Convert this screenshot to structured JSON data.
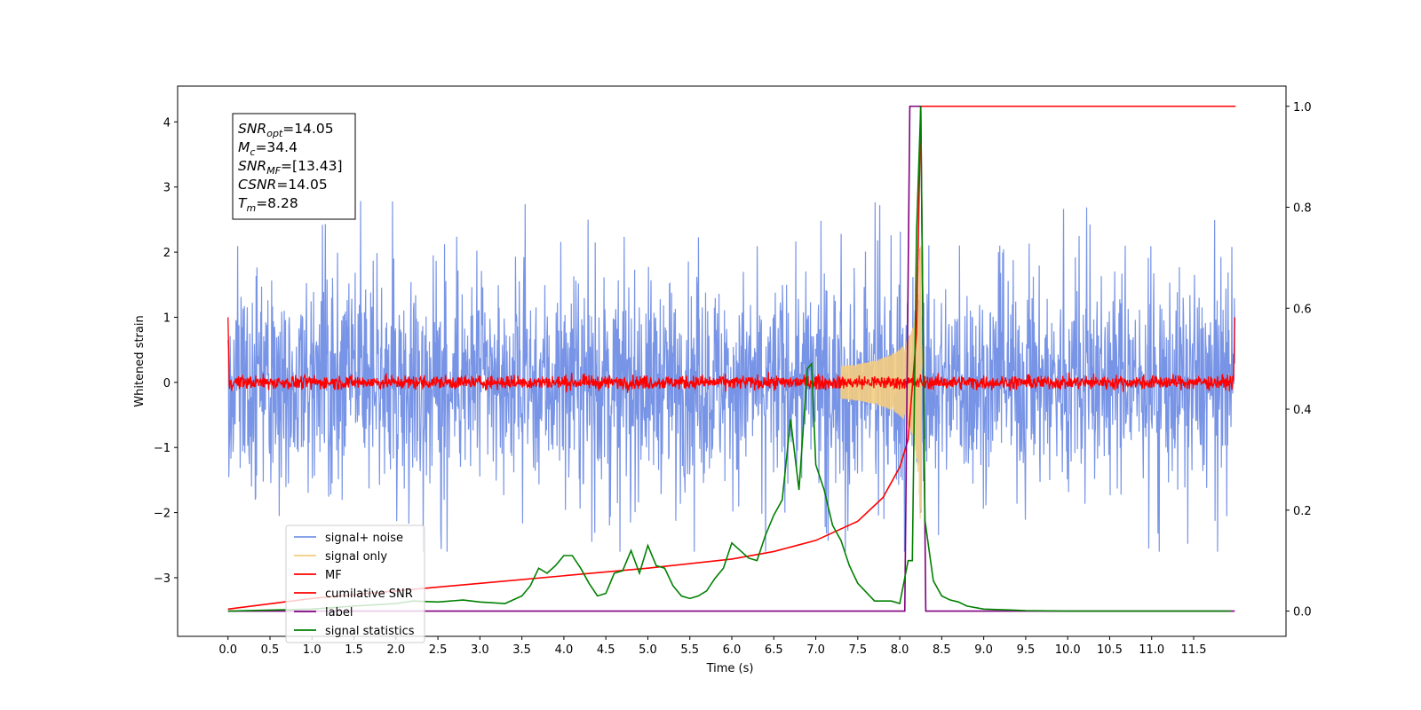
{
  "chart_data": {
    "type": "line",
    "xlabel": "Time (s)",
    "ylabel": "Whitened strain",
    "xlim": [
      -0.6,
      12.6
    ],
    "ylim": [
      -3.9,
      4.55
    ],
    "y2lim": [
      -0.05,
      1.04
    ],
    "x_ticks": [
      "0.0",
      "0.5",
      "1.0",
      "1.5",
      "2.0",
      "2.5",
      "3.0",
      "3.5",
      "4.0",
      "4.5",
      "5.0",
      "5.5",
      "6.0",
      "6.5",
      "7.0",
      "7.5",
      "8.0",
      "8.5",
      "9.0",
      "9.5",
      "10.0",
      "10.5",
      "11.0",
      "11.5"
    ],
    "y_ticks": [
      "4",
      "3",
      "2",
      "1",
      "0",
      "−1",
      "−2",
      "−3"
    ],
    "y2_ticks": [
      "1.0",
      "0.8",
      "0.6",
      "0.4",
      "0.2",
      "0.0"
    ],
    "grid": false,
    "legend_position": "lower-left",
    "colors": {
      "noise": "#7894e6",
      "signal": "#f4cc80",
      "mf": "#ff0000",
      "csnr": "#ff0000",
      "label": "#800080",
      "stats": "#008000"
    },
    "series": [
      {
        "name": "signal+ noise",
        "axis": "left",
        "x_range": [
          0.0,
          11.99
        ],
        "typical_range": [
          -1.5,
          1.5
        ],
        "extremes": [
          -2.6,
          2.85
        ]
      },
      {
        "name": "signal only",
        "axis": "left",
        "peak_time": 8.26,
        "peak_amplitude": 2.1
      },
      {
        "name": "MF",
        "axis": "left",
        "baseline": 0.0,
        "noise_amplitude": 0.12,
        "endpoint_value": 1.0
      },
      {
        "name": "cumilative SNR",
        "axis": "right",
        "x": [
          0.0,
          1.0,
          2.0,
          3.0,
          4.0,
          5.0,
          6.0,
          6.5,
          7.0,
          7.5,
          7.8,
          8.0,
          8.1,
          8.2,
          8.25,
          8.3,
          12.0
        ],
        "y": [
          0.004,
          0.025,
          0.04,
          0.055,
          0.07,
          0.085,
          0.103,
          0.118,
          0.14,
          0.178,
          0.225,
          0.285,
          0.34,
          0.55,
          1.0,
          1.0,
          1.0
        ]
      },
      {
        "name": "label",
        "axis": "right",
        "x": [
          0.0,
          8.06,
          8.12,
          8.25,
          8.31,
          11.99
        ],
        "y": [
          0.0,
          0.0,
          1.0,
          1.0,
          0.0,
          0.0
        ]
      },
      {
        "name": "signal statistics",
        "axis": "right",
        "x": [
          0.0,
          1.0,
          1.5,
          2.0,
          2.2,
          2.5,
          2.8,
          3.0,
          3.3,
          3.5,
          3.6,
          3.7,
          3.8,
          3.9,
          4.0,
          4.1,
          4.2,
          4.3,
          4.4,
          4.5,
          4.6,
          4.7,
          4.8,
          4.9,
          5.0,
          5.1,
          5.2,
          5.3,
          5.4,
          5.5,
          5.6,
          5.7,
          5.8,
          5.9,
          6.0,
          6.1,
          6.2,
          6.3,
          6.4,
          6.5,
          6.6,
          6.7,
          6.8,
          6.9,
          6.95,
          7.0,
          7.1,
          7.2,
          7.3,
          7.4,
          7.5,
          7.7,
          7.9,
          8.0,
          8.1,
          8.15,
          8.2,
          8.25,
          8.3,
          8.4,
          8.5,
          8.6,
          8.7,
          8.8,
          9.0,
          9.5,
          10.0,
          11.0,
          11.94
        ],
        "y": [
          0.0,
          0.004,
          0.01,
          0.015,
          0.02,
          0.018,
          0.022,
          0.018,
          0.015,
          0.03,
          0.05,
          0.085,
          0.075,
          0.09,
          0.11,
          0.11,
          0.085,
          0.055,
          0.03,
          0.035,
          0.075,
          0.08,
          0.12,
          0.075,
          0.13,
          0.09,
          0.085,
          0.05,
          0.03,
          0.025,
          0.03,
          0.04,
          0.065,
          0.085,
          0.135,
          0.12,
          0.105,
          0.1,
          0.15,
          0.19,
          0.22,
          0.38,
          0.24,
          0.48,
          0.49,
          0.29,
          0.24,
          0.17,
          0.14,
          0.09,
          0.055,
          0.02,
          0.02,
          0.015,
          0.1,
          0.1,
          0.75,
          1.0,
          0.18,
          0.06,
          0.03,
          0.022,
          0.018,
          0.01,
          0.004,
          0.001,
          0.0,
          0.0,
          0.0
        ]
      }
    ],
    "annotation": {
      "lines": [
        {
          "main": "SNR",
          "sub": "opt",
          "value": "=14.05"
        },
        {
          "main": "M",
          "sub": "c",
          "value": "=34.4"
        },
        {
          "main": "SNR",
          "sub": "MF",
          "value": "=[13.43]"
        },
        {
          "main": "CSNR",
          "sub": "",
          "value": "=14.05"
        },
        {
          "main": "T",
          "sub": "m",
          "value": "=8.28"
        }
      ]
    }
  }
}
